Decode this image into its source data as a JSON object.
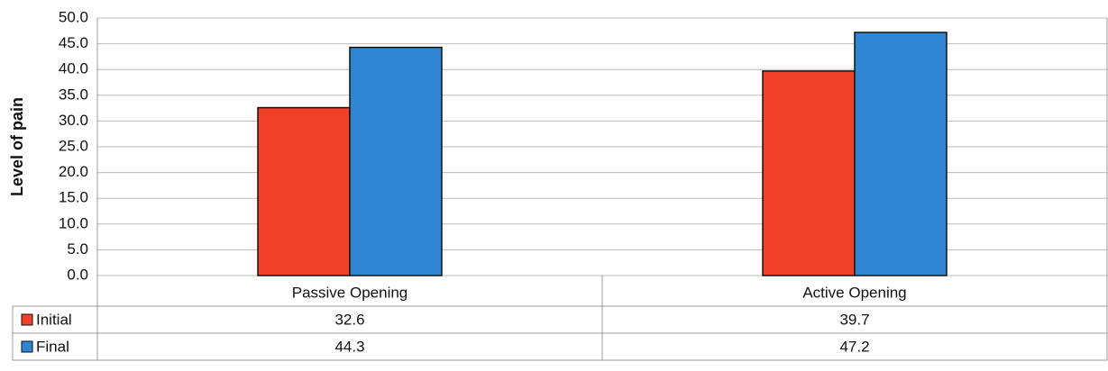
{
  "chart_data": {
    "type": "bar",
    "y_label": "Level of pain",
    "categories": [
      "Passive Opening",
      "Active Opening"
    ],
    "series": [
      {
        "name": "Initial",
        "color": "#f0402a",
        "values": [
          32.6,
          39.7
        ]
      },
      {
        "name": "Final",
        "color": "#2f86d2",
        "values": [
          44.3,
          47.2
        ]
      }
    ],
    "ylim": [
      0,
      50
    ],
    "yticks": [
      {
        "value": 0,
        "label": "0.0"
      },
      {
        "value": 5,
        "label": "5.0"
      },
      {
        "value": 10,
        "label": "10.0"
      },
      {
        "value": 15,
        "label": "15.0"
      },
      {
        "value": 20,
        "label": "20.0"
      },
      {
        "value": 25,
        "label": "25.0"
      },
      {
        "value": 30,
        "label": "30.0"
      },
      {
        "value": 35,
        "label": "35.0"
      },
      {
        "value": 40,
        "label": "40.0"
      },
      {
        "value": 45,
        "label": "45.0"
      },
      {
        "value": 50,
        "label": "50.0"
      }
    ],
    "grid": true
  }
}
